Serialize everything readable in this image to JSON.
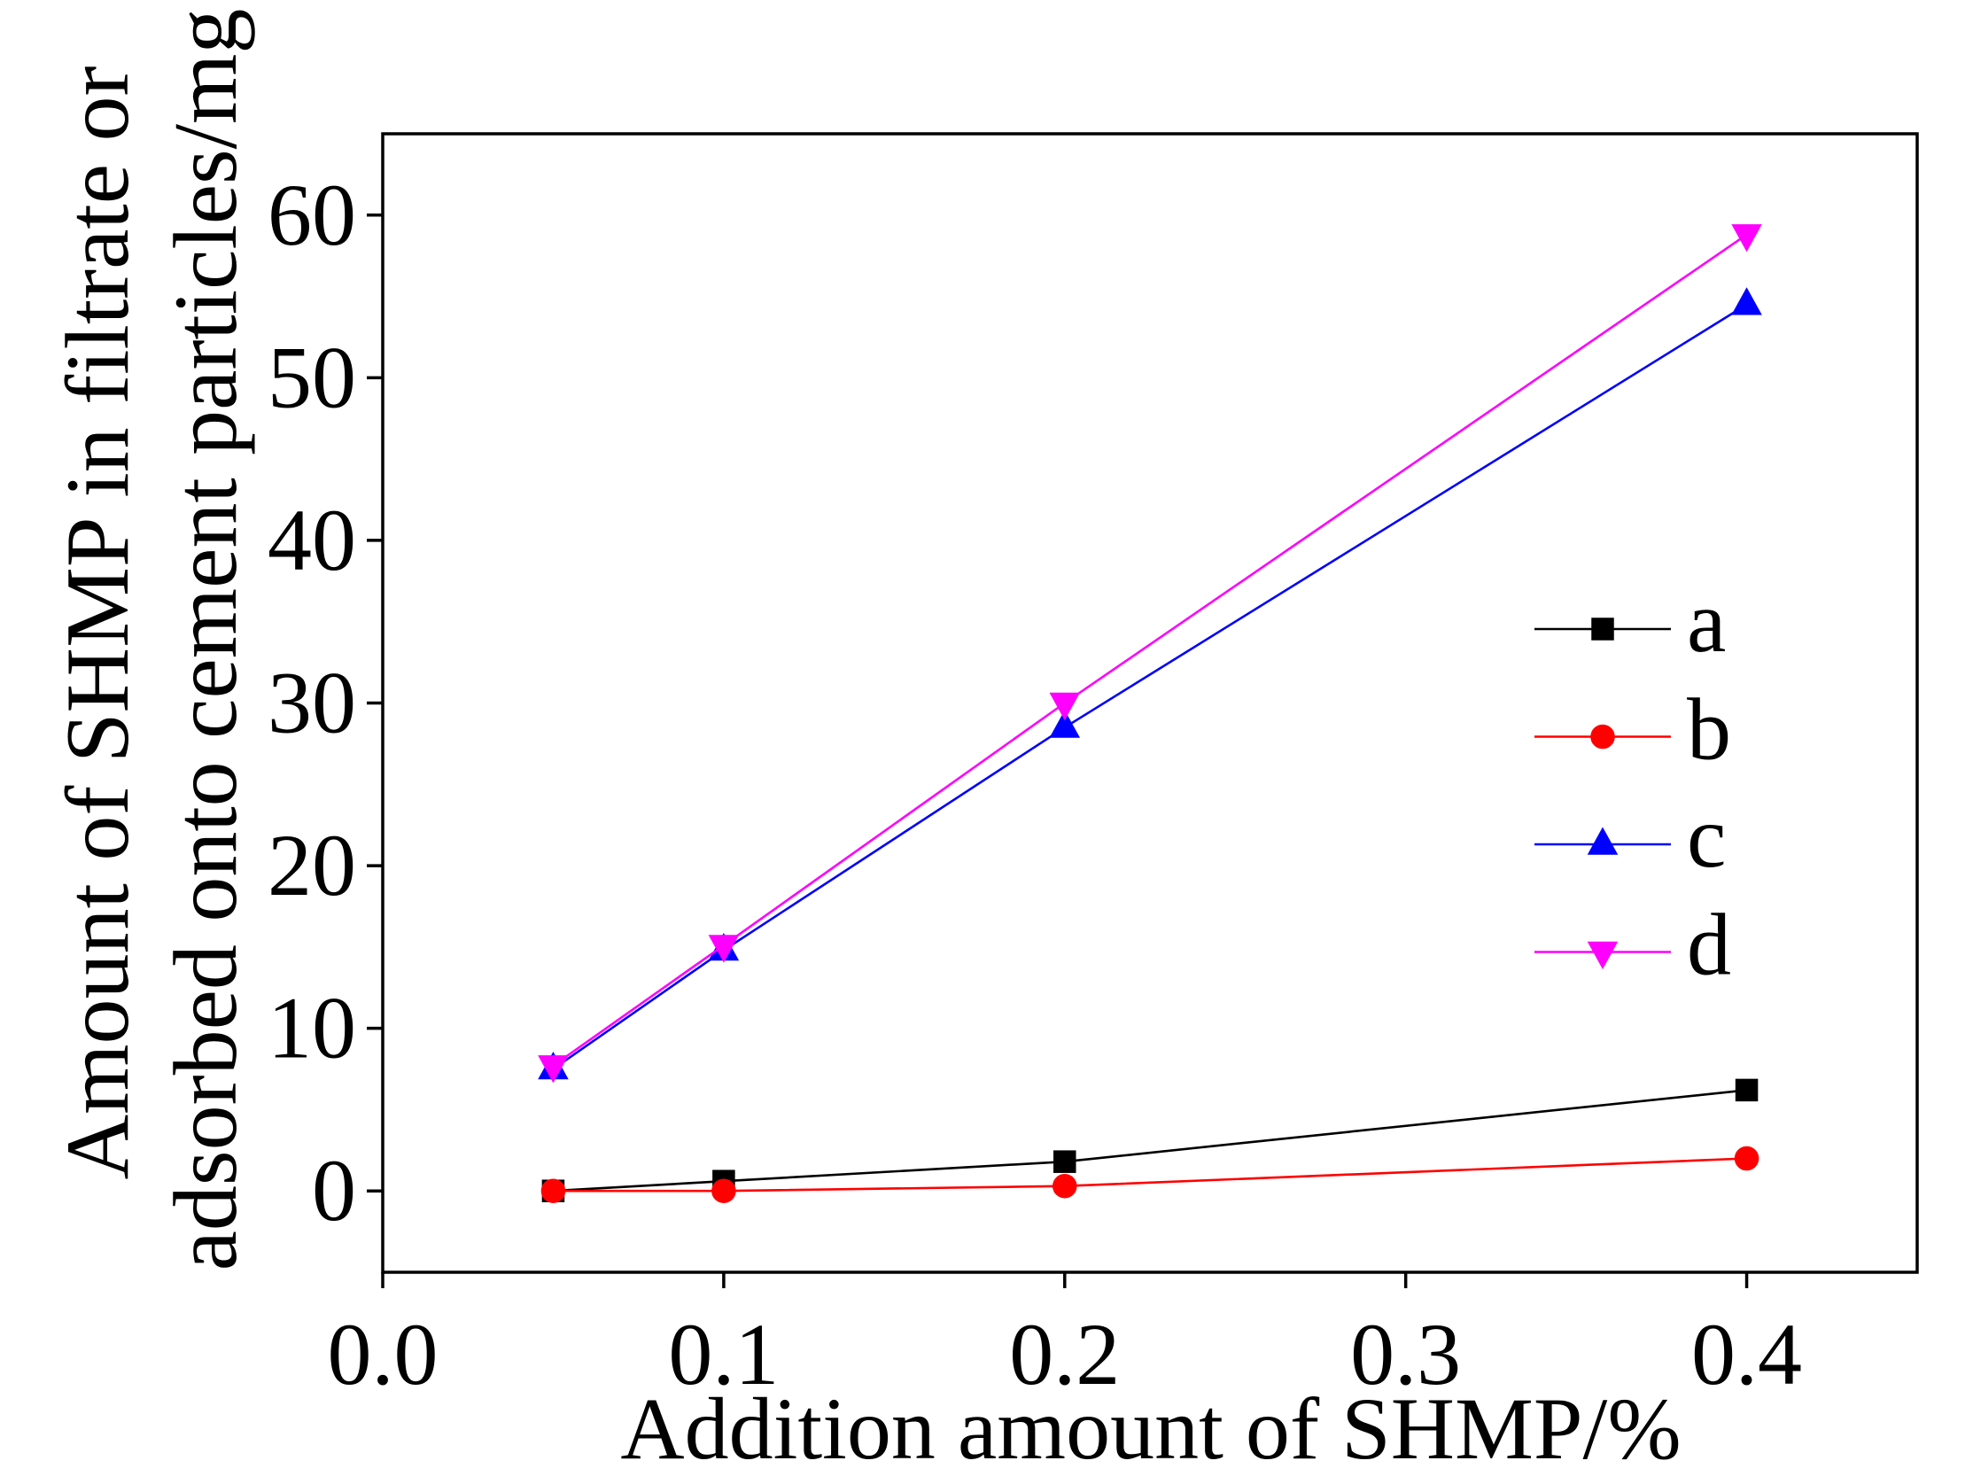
{
  "chart_data": {
    "type": "line",
    "xlabel": "Addition amount of SHMP/%",
    "ylabel": [
      "Amount of SHMP in filtrate or",
      "adsorbed onto cement particles/mg"
    ],
    "xlim": [
      0,
      0.45
    ],
    "ylim": [
      -5,
      65
    ],
    "x_ticks": [
      0,
      0.1,
      0.2,
      0.3,
      0.4
    ],
    "x_tick_labels": [
      "0.0",
      "0.1",
      "0.2",
      "0.3",
      "0.4"
    ],
    "y_ticks": [
      0,
      10,
      20,
      30,
      40,
      50,
      60
    ],
    "y_tick_labels": [
      "0",
      "10",
      "20",
      "30",
      "40",
      "50",
      "60"
    ],
    "grid": false,
    "legend_position": "right",
    "series": [
      {
        "name": "a",
        "color": "#000000",
        "marker": "square",
        "x": [
          0.05,
          0.1,
          0.2,
          0.4
        ],
        "y": [
          0.0,
          0.6,
          1.8,
          6.2
        ]
      },
      {
        "name": "b",
        "color": "#ff0000",
        "marker": "circle",
        "x": [
          0.05,
          0.1,
          0.2,
          0.4
        ],
        "y": [
          0.0,
          0.0,
          0.3,
          2.0
        ]
      },
      {
        "name": "c",
        "color": "#0000ff",
        "marker": "triangle-up",
        "x": [
          0.05,
          0.1,
          0.2,
          0.4
        ],
        "y": [
          7.5,
          14.8,
          28.5,
          54.5
        ]
      },
      {
        "name": "d",
        "color": "#ff00ff",
        "marker": "triangle-down",
        "x": [
          0.05,
          0.1,
          0.2,
          0.4
        ],
        "y": [
          7.7,
          15.1,
          30.0,
          58.8
        ]
      }
    ]
  }
}
